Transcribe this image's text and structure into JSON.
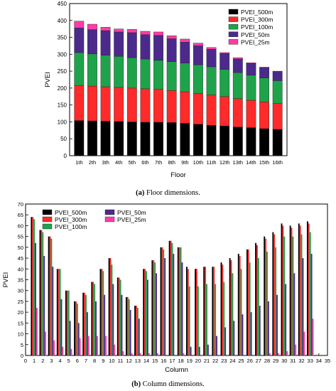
{
  "colors": {
    "PVEI_500m": "#000000",
    "PVEI_300m": "#ff2a2a",
    "PVEI_100m": "#1ea34a",
    "PVEI_50m": "#4b2a8c",
    "PVEI_25m": "#ff3ca6"
  },
  "chart_data": [
    {
      "type": "bar",
      "stacked": true,
      "caption_label": "(a)",
      "caption_text": "Floor dimensions.",
      "xlabel": "Floor",
      "ylabel": "PVEI",
      "ylim": [
        0,
        450
      ],
      "yticks": [
        0,
        50,
        100,
        150,
        200,
        250,
        300,
        350,
        400,
        450
      ],
      "legend_position": "top-right",
      "categories": [
        "1th",
        "2th",
        "3th",
        "4th",
        "5th",
        "6th",
        "7th",
        "8th",
        "9th",
        "10th",
        "11th",
        "12th",
        "13th",
        "14th",
        "15th",
        "16th"
      ],
      "series": [
        {
          "name": "PVEI_500m",
          "values": [
            104,
            103,
            102,
            101,
            100,
            99,
            99,
            98,
            96,
            93,
            90,
            88,
            85,
            83,
            80,
            78
          ]
        },
        {
          "name": "PVEI_300m",
          "values": [
            104,
            103,
            102,
            101,
            100,
            99,
            98,
            95,
            93,
            91,
            90,
            87,
            84,
            81,
            79,
            77
          ]
        },
        {
          "name": "PVEI_100m",
          "values": [
            97,
            95,
            93,
            92,
            90,
            88,
            85,
            85,
            85,
            85,
            83,
            80,
            77,
            74,
            71,
            67
          ]
        },
        {
          "name": "PVEI_50m",
          "values": [
            73,
            72,
            73,
            72,
            74,
            72,
            74,
            68,
            62,
            56,
            52,
            47,
            40,
            35,
            30,
            28
          ]
        },
        {
          "name": "PVEI_25m",
          "values": [
            20,
            16,
            10,
            9,
            10,
            10,
            10,
            9,
            9,
            8,
            5,
            3,
            4,
            2,
            2,
            0
          ]
        }
      ]
    },
    {
      "type": "bar",
      "caption_label": "(b)",
      "caption_text": "Column dimensions.",
      "xlabel": "Column",
      "ylabel": "PVEI",
      "ylim": [
        0,
        70
      ],
      "yticks": [
        0,
        5,
        10,
        15,
        20,
        25,
        30,
        35,
        40,
        45,
        50,
        55,
        60,
        65,
        70
      ],
      "xticks": [
        0,
        1,
        2,
        3,
        4,
        5,
        6,
        7,
        8,
        9,
        10,
        11,
        12,
        13,
        14,
        15,
        16,
        17,
        18,
        19,
        20,
        21,
        22,
        23,
        24,
        25,
        26,
        27,
        28,
        29,
        30,
        31,
        32,
        33,
        34,
        35
      ],
      "legend_position": "top-left",
      "categories": [
        1,
        2,
        3,
        4,
        5,
        6,
        7,
        8,
        9,
        10,
        11,
        12,
        13,
        14,
        15,
        16,
        17,
        18,
        19,
        20,
        21,
        22,
        23,
        24,
        25,
        26,
        27,
        28,
        29,
        30,
        31,
        32,
        33
      ],
      "series": [
        {
          "name": "PVEI_500m",
          "values": [
            64,
            58,
            55,
            40,
            30,
            25,
            29,
            34,
            40,
            45,
            36,
            27,
            23,
            40,
            44,
            50,
            53,
            50,
            41,
            40,
            41,
            41,
            43,
            45,
            47,
            49,
            52,
            55,
            57,
            61,
            60,
            61,
            62
          ]
        },
        {
          "name": "PVEI_300m",
          "values": [
            64,
            58,
            55,
            40,
            30,
            25,
            29,
            34,
            40,
            45,
            36,
            27,
            23,
            40,
            44,
            50,
            53,
            50,
            40,
            40,
            41,
            41,
            42,
            44,
            46,
            49,
            51,
            54,
            56,
            60,
            59,
            60,
            61
          ]
        },
        {
          "name": "PVEI_100m",
          "values": [
            63,
            57,
            54,
            40,
            30,
            24,
            28,
            33,
            39,
            42,
            35,
            26,
            22,
            39,
            43,
            49,
            52,
            50,
            32,
            32,
            33,
            33,
            34,
            38,
            40,
            43,
            45,
            48,
            50,
            55,
            55,
            56,
            57
          ]
        },
        {
          "name": "PVEI_50m",
          "values": [
            52,
            46,
            41,
            26,
            16,
            15,
            20,
            25,
            28,
            33,
            28,
            21,
            17,
            35,
            38,
            45,
            47,
            43,
            4,
            4,
            5,
            9,
            13,
            16,
            19,
            20,
            23,
            25,
            28,
            33,
            38,
            45,
            47
          ]
        },
        {
          "name": "PVEI_25m",
          "values": [
            22,
            11,
            7,
            4,
            3,
            8,
            9,
            9,
            9,
            5,
            2,
            1,
            1,
            1,
            1,
            0,
            0,
            1,
            0,
            0,
            0,
            0,
            0,
            0,
            0,
            0,
            0,
            1,
            1,
            2,
            5,
            11,
            17
          ]
        }
      ]
    }
  ]
}
